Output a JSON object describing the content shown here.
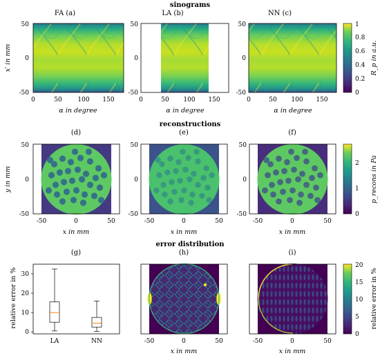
{
  "figure": {
    "section_titles": [
      "sinograms",
      "reconstructions",
      "error distribution"
    ],
    "panel_labels": {
      "a": "FA (a)",
      "b": "LA (b)",
      "c": "NN (c)",
      "d": "(d)",
      "e": "(e)",
      "f": "(f)",
      "g": "(g)",
      "h": "(h)",
      "i": "(i)"
    }
  },
  "colors": {
    "viridis_dark": "#440154",
    "viridis_mid": "#21918c",
    "viridis_light": "#fde725",
    "boxplot_median": "#ff7f0e"
  },
  "chart_data": [
    {
      "id": "a",
      "type": "heatmap",
      "title": "FA (a)",
      "xlabel": "α in degree",
      "ylabel": "x′ in mm",
      "xlim": [
        0,
        180
      ],
      "ylim": [
        -50,
        50
      ],
      "xticks": [
        "0",
        "50",
        "100",
        "150"
      ],
      "yticks": [
        "-50",
        "0",
        "50"
      ],
      "colormap": "viridis",
      "data_columns": [
        0,
        180
      ]
    },
    {
      "id": "b",
      "type": "heatmap",
      "title": "LA (b)",
      "xlabel": "α in degree",
      "xlim": [
        0,
        180
      ],
      "ylim": [
        -50,
        50
      ],
      "xticks": [
        "0",
        "50",
        "100",
        "150"
      ],
      "yticks": [
        "-50",
        "0",
        "50"
      ],
      "colormap": "viridis",
      "data_columns": [
        40,
        140
      ]
    },
    {
      "id": "c",
      "type": "heatmap",
      "title": "NN (c)",
      "xlabel": "α in degree",
      "xlim": [
        0,
        180
      ],
      "ylim": [
        -50,
        50
      ],
      "xticks": [
        "0",
        "50",
        "100",
        "150"
      ],
      "yticks": [
        "-50",
        "0",
        "50"
      ],
      "colormap": "viridis",
      "data_columns": [
        0,
        180
      ]
    },
    {
      "id": "colorbar_1",
      "type": "colorbar",
      "label": "R_p in a.u.",
      "ticks": [
        "0",
        "0.2",
        "0.4",
        "0.6",
        "0.8",
        "1"
      ],
      "range": [
        0,
        1
      ],
      "colormap": "viridis"
    },
    {
      "id": "d",
      "type": "heatmap",
      "title": "(d)",
      "xlabel": "x in mm",
      "ylabel": "y in mm",
      "xlim": [
        -60,
        60
      ],
      "ylim": [
        -50,
        50
      ],
      "xticks": [
        "-50",
        "0",
        "50"
      ],
      "yticks": [
        "-50",
        "0",
        "50"
      ],
      "colormap": "viridis",
      "background": "#443a83"
    },
    {
      "id": "e",
      "type": "heatmap",
      "title": "(e)",
      "xlabel": "x in mm",
      "xlim": [
        -60,
        60
      ],
      "ylim": [
        -50,
        50
      ],
      "xticks": [
        "-50",
        "0",
        "50"
      ],
      "yticks": [
        "-50",
        "0",
        "50"
      ],
      "colormap": "viridis",
      "background": "#3b528b"
    },
    {
      "id": "f",
      "type": "heatmap",
      "title": "(f)",
      "xlabel": "x in mm",
      "xlim": [
        -60,
        60
      ],
      "ylim": [
        -50,
        50
      ],
      "xticks": [
        "-50",
        "0",
        "50"
      ],
      "yticks": [
        "-50",
        "0",
        "50"
      ],
      "colormap": "viridis",
      "background": "#472d7b"
    },
    {
      "id": "colorbar_2",
      "type": "colorbar",
      "label": "p_recons in Pa",
      "ticks": [
        "0",
        "1",
        "2"
      ],
      "range": [
        0,
        2.5
      ],
      "colormap": "viridis"
    },
    {
      "id": "g",
      "type": "boxplot",
      "title": "(g)",
      "ylabel": "relative error in %",
      "categories": [
        "LA",
        "NN"
      ],
      "ylim": [
        -1,
        35
      ],
      "yticks": [
        "0",
        "10",
        "20",
        "30"
      ],
      "boxes": [
        {
          "category": "LA",
          "whisker_low": 0.5,
          "q1": 5,
          "median": 10,
          "q3": 15.5,
          "whisker_high": 32.5
        },
        {
          "category": "NN",
          "whisker_low": 0.3,
          "q1": 2.5,
          "median": 4.5,
          "q3": 7.5,
          "whisker_high": 16
        }
      ]
    },
    {
      "id": "h",
      "type": "heatmap",
      "title": "(h)",
      "xlabel": "x in mm",
      "xlim": [
        -60,
        60
      ],
      "ylim": [
        -50,
        50
      ],
      "xticks": [
        "-50",
        "0",
        "50"
      ],
      "colormap": "viridis"
    },
    {
      "id": "i",
      "type": "heatmap",
      "title": "(i)",
      "xlabel": "x in mm",
      "xlim": [
        -60,
        60
      ],
      "ylim": [
        -50,
        50
      ],
      "xticks": [
        "-50",
        "0",
        "50"
      ],
      "colormap": "viridis"
    },
    {
      "id": "colorbar_3",
      "type": "colorbar",
      "label": "relative error in %",
      "ticks": [
        "0",
        "5",
        "10",
        "15",
        "20"
      ],
      "range": [
        0,
        20
      ],
      "colormap": "viridis"
    }
  ]
}
